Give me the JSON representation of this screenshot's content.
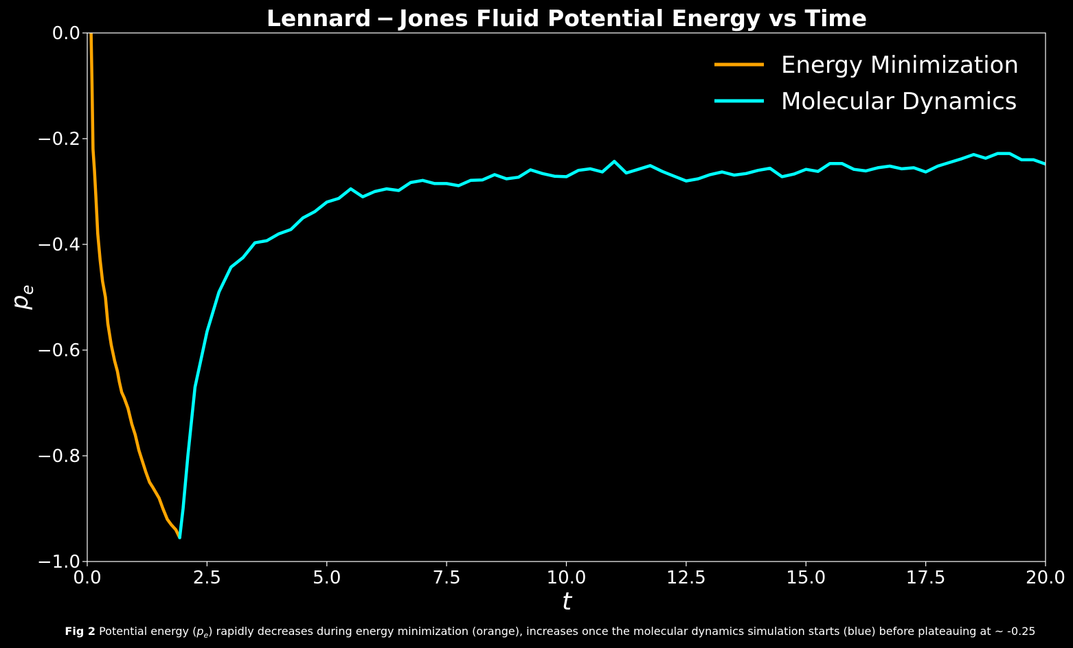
{
  "chart_data": {
    "type": "line",
    "title": "Lennard − Jones Fluid Potential Energy vs Time",
    "xlabel": "t",
    "ylabel": "p",
    "ylabel_sub": "e",
    "xlim": [
      0,
      20
    ],
    "ylim": [
      -1.0,
      0.0
    ],
    "x_ticks": [
      "0.0",
      "2.5",
      "5.0",
      "7.5",
      "10.0",
      "12.5",
      "15.0",
      "17.5",
      "20.0"
    ],
    "y_ticks": [
      "0.0",
      "−0.2",
      "−0.4",
      "−0.6",
      "−0.8",
      "−1.0"
    ],
    "grid": false,
    "legend_position": "top-right",
    "series": [
      {
        "name": "Energy Minimization",
        "color": "#FFA500",
        "x": [
          0.08,
          0.1,
          0.12,
          0.15,
          0.18,
          0.22,
          0.27,
          0.32,
          0.38,
          0.43,
          0.5,
          0.57,
          0.63,
          0.67,
          0.72,
          0.77,
          0.85,
          0.93,
          1.0,
          1.08,
          1.15,
          1.22,
          1.3,
          1.37,
          1.5,
          1.58,
          1.67,
          1.75,
          1.85,
          1.93
        ],
        "y": [
          0.0,
          -0.1,
          -0.22,
          -0.26,
          -0.31,
          -0.38,
          -0.43,
          -0.47,
          -0.5,
          -0.55,
          -0.59,
          -0.62,
          -0.64,
          -0.66,
          -0.68,
          -0.69,
          -0.71,
          -0.74,
          -0.76,
          -0.79,
          -0.81,
          -0.83,
          -0.85,
          -0.86,
          -0.88,
          -0.9,
          -0.92,
          -0.93,
          -0.94,
          -0.955
        ]
      },
      {
        "name": "Molecular Dynamics",
        "color": "#00FFFF",
        "x": [
          1.93,
          2.0,
          2.1,
          2.25,
          2.5,
          2.75,
          3.0,
          3.25,
          3.5,
          3.75,
          4.0,
          4.25,
          4.5,
          4.75,
          5.0,
          5.25,
          5.5,
          5.75,
          6.0,
          6.25,
          6.5,
          6.75,
          7.0,
          7.25,
          7.5,
          7.75,
          8.0,
          8.25,
          8.5,
          8.75,
          9.0,
          9.25,
          9.5,
          9.75,
          10.0,
          10.25,
          10.5,
          10.75,
          11.0,
          11.25,
          11.5,
          11.75,
          12.0,
          12.25,
          12.5,
          12.75,
          13.0,
          13.25,
          13.5,
          13.75,
          14.0,
          14.25,
          14.5,
          14.75,
          15.0,
          15.25,
          15.5,
          15.75,
          16.0,
          16.25,
          16.5,
          16.75,
          17.0,
          17.25,
          17.5,
          17.75,
          18.0,
          18.25,
          18.5,
          18.75,
          19.0,
          19.25,
          19.5,
          19.75,
          20.0
        ],
        "y": [
          -0.955,
          -0.9,
          -0.8,
          -0.67,
          -0.565,
          -0.49,
          -0.443,
          -0.425,
          -0.397,
          -0.393,
          -0.38,
          -0.372,
          -0.35,
          -0.338,
          -0.32,
          -0.313,
          -0.295,
          -0.31,
          -0.3,
          -0.295,
          -0.298,
          -0.283,
          -0.279,
          -0.285,
          -0.285,
          -0.289,
          -0.279,
          -0.278,
          -0.268,
          -0.276,
          -0.273,
          -0.259,
          -0.266,
          -0.271,
          -0.272,
          -0.26,
          -0.257,
          -0.263,
          -0.243,
          -0.265,
          -0.258,
          -0.251,
          -0.262,
          -0.271,
          -0.28,
          -0.276,
          -0.268,
          -0.263,
          -0.269,
          -0.266,
          -0.26,
          -0.256,
          -0.272,
          -0.267,
          -0.258,
          -0.262,
          -0.247,
          -0.247,
          -0.258,
          -0.261,
          -0.255,
          -0.252,
          -0.257,
          -0.255,
          -0.263,
          -0.252,
          -0.245,
          -0.238,
          -0.23,
          -0.237,
          -0.228,
          -0.228,
          -0.24,
          -0.24,
          -0.248
        ]
      }
    ]
  },
  "caption": {
    "label": "Fig 2",
    "text_before": " Potential energy (",
    "symbol": "p",
    "symbol_sub": "e",
    "text_after": ") rapidly decreases during energy minimization (orange), increases once the molecular dynamics simulation starts (blue) before plateauing at ~ -0.25"
  }
}
